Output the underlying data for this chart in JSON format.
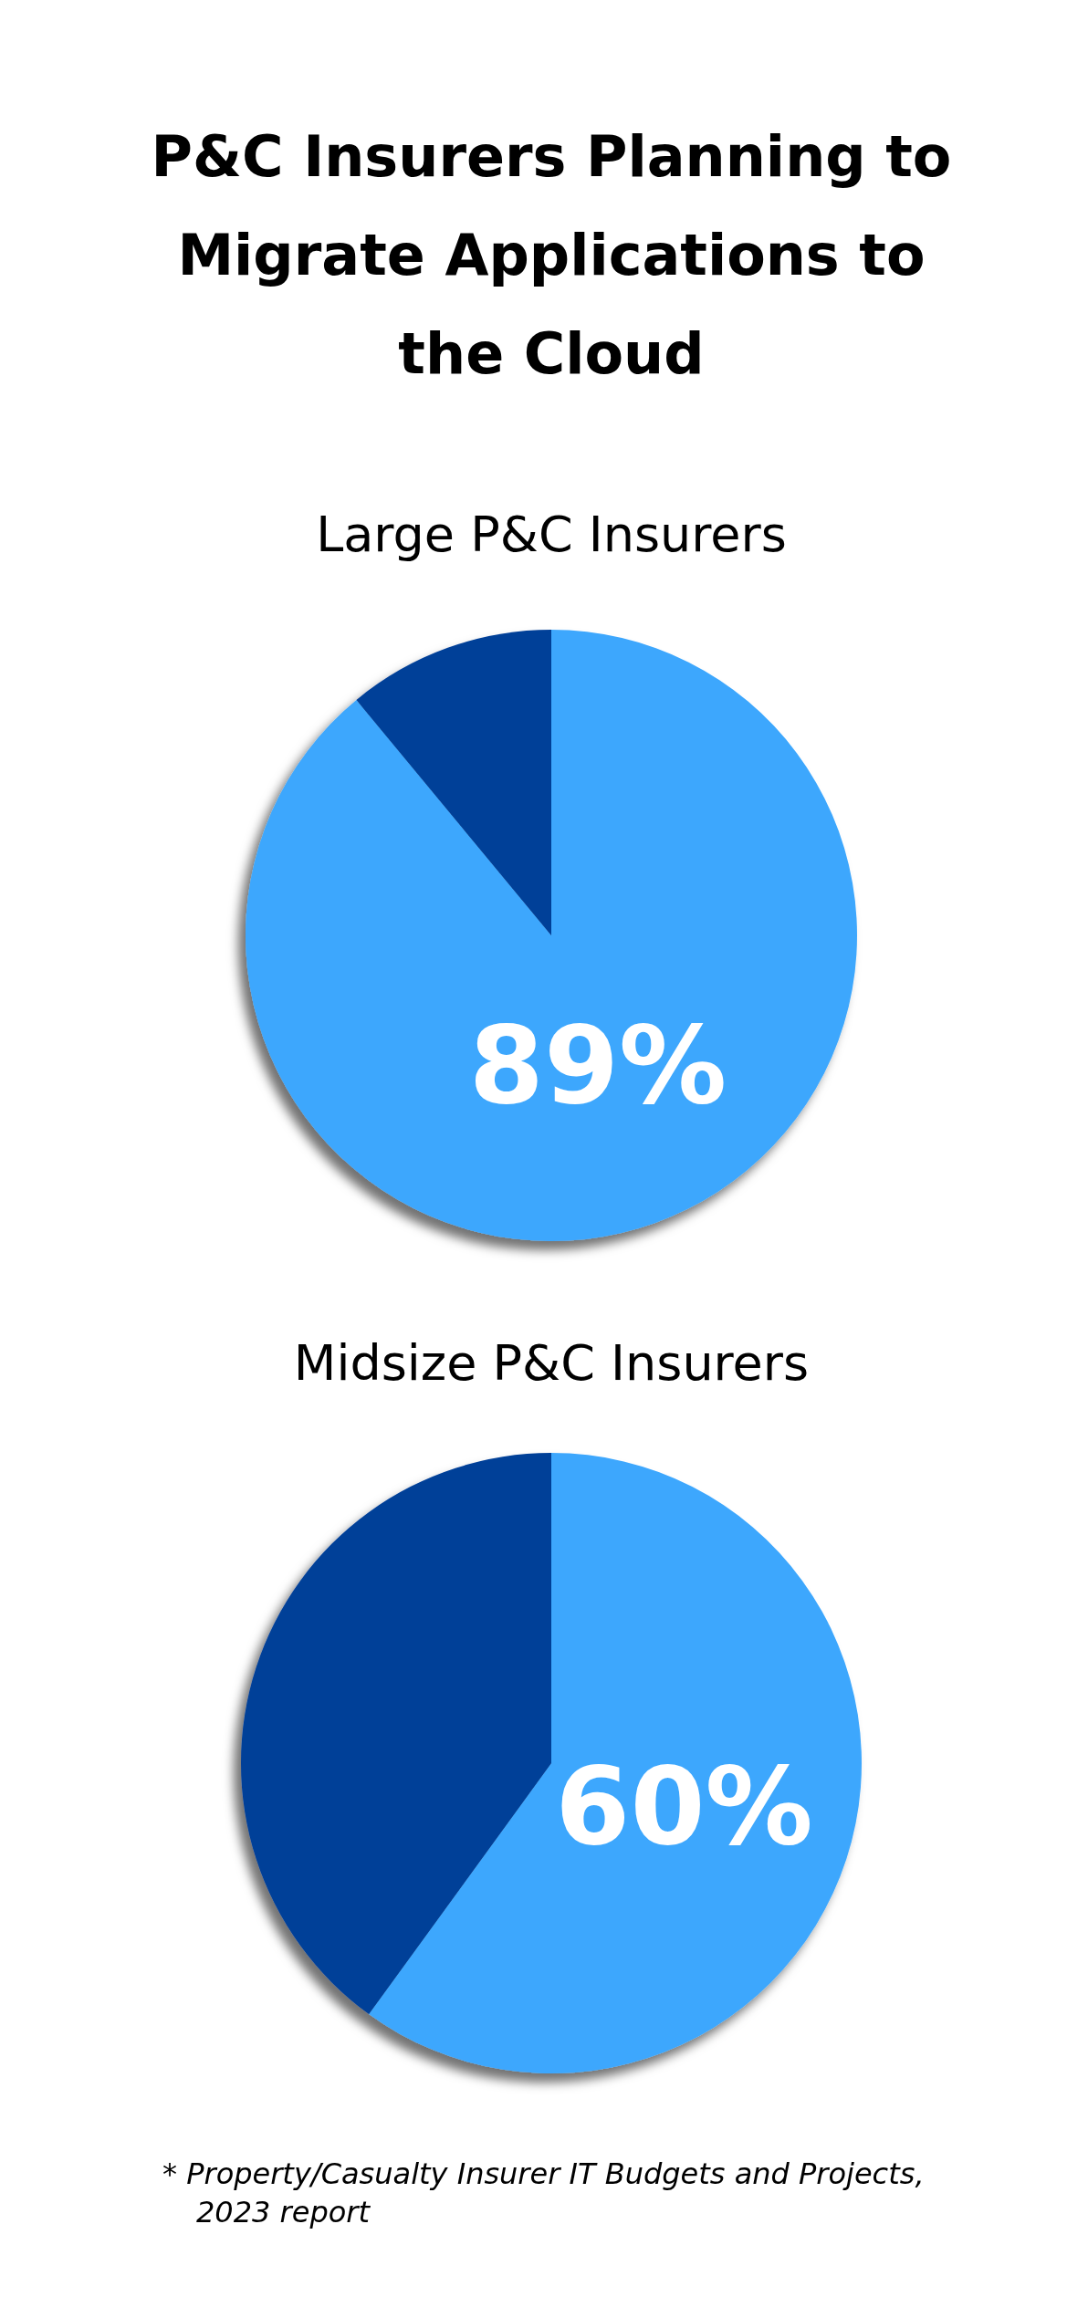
{
  "chart_data": [
    {
      "type": "pie",
      "title": "P&C Insurers Planning to Migrate Applications to the Cloud",
      "subtitle": "Large P&C Insurers",
      "categories": [
        null,
        null
      ],
      "values": [
        89,
        11
      ],
      "colors": [
        "#3ea7fd",
        "#003f98"
      ],
      "value_labels": [
        "89%",
        null
      ]
    },
    {
      "type": "pie",
      "title": "Midsize P&C Insurers",
      "categories": [
        null,
        null
      ],
      "values": [
        60,
        40
      ],
      "colors": [
        "#3ea7fd",
        "#003f98"
      ],
      "value_labels": [
        "60%",
        null
      ],
      "annotations": [
        "*  Property/Casualty Insurer IT Budgets and Projects, 2023 report"
      ]
    }
  ]
}
